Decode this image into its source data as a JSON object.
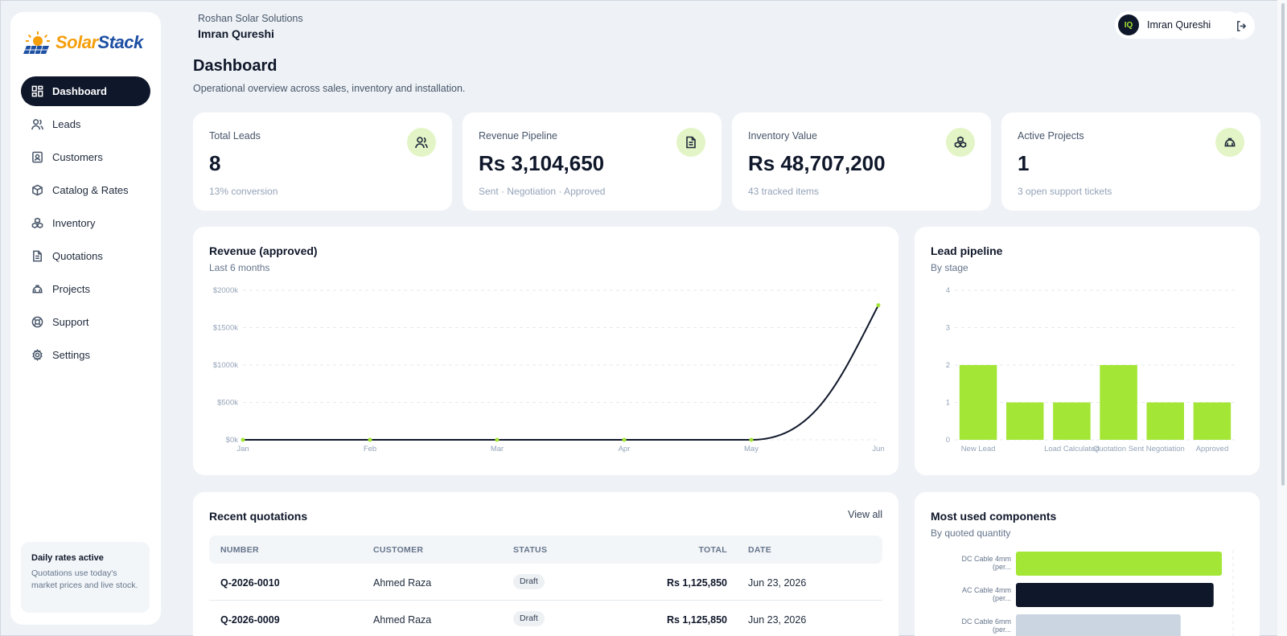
{
  "brand": {
    "solar": "Solar",
    "stack": "Stack"
  },
  "nav": [
    {
      "label": "Dashboard",
      "icon": "dashboard-icon",
      "active": true
    },
    {
      "label": "Leads",
      "icon": "users-icon"
    },
    {
      "label": "Customers",
      "icon": "contact-icon"
    },
    {
      "label": "Catalog & Rates",
      "icon": "box-icon"
    },
    {
      "label": "Inventory",
      "icon": "boxes-icon"
    },
    {
      "label": "Quotations",
      "icon": "document-icon"
    },
    {
      "label": "Projects",
      "icon": "hardhat-icon"
    },
    {
      "label": "Support",
      "icon": "lifebuoy-icon"
    },
    {
      "label": "Settings",
      "icon": "gear-icon"
    }
  ],
  "rates": {
    "title": "Daily rates active",
    "text": "Quotations use today's market prices and live stock."
  },
  "header": {
    "company": "Roshan Solar Solutions",
    "user": "Imran Qureshi",
    "initials": "IQ",
    "pill_name": "Imran Qureshi"
  },
  "page": {
    "title": "Dashboard",
    "subtitle": "Operational overview across sales, inventory and installation."
  },
  "stats": [
    {
      "label": "Total Leads",
      "value": "8",
      "sub": "13% conversion",
      "icon": "users-icon"
    },
    {
      "label": "Revenue Pipeline",
      "value": "Rs 3,104,650",
      "sub": "Sent · Negotiation · Approved",
      "icon": "document-icon"
    },
    {
      "label": "Inventory Value",
      "value": "Rs 48,707,200",
      "sub": "43 tracked items",
      "icon": "boxes-icon"
    },
    {
      "label": "Active Projects",
      "value": "1",
      "sub": "3 open support tickets",
      "icon": "hardhat-icon"
    }
  ],
  "revenue": {
    "title": "Revenue (approved)",
    "subtitle": "Last 6 months"
  },
  "pipeline": {
    "title": "Lead pipeline",
    "subtitle": "By stage"
  },
  "components": {
    "title": "Most used components",
    "subtitle": "By quoted quantity"
  },
  "quotations": {
    "title": "Recent quotations",
    "view_all": "View all",
    "columns": [
      "NUMBER",
      "CUSTOMER",
      "STATUS",
      "TOTAL",
      "DATE"
    ],
    "rows": [
      {
        "number": "Q-2026-0010",
        "customer": "Ahmed Raza",
        "status": "Draft",
        "total": "Rs 1,125,850",
        "date": "Jun 23, 2026"
      },
      {
        "number": "Q-2026-0009",
        "customer": "Ahmed Raza",
        "status": "Draft",
        "total": "Rs 1,125,850",
        "date": "Jun 23, 2026"
      }
    ]
  },
  "colors": {
    "accent": "#a3e635",
    "dark": "#0f172a",
    "muted": "#cbd5e1"
  },
  "chart_data": [
    {
      "type": "line",
      "title": "Revenue (approved)",
      "subtitle": "Last 6 months",
      "x": [
        "Jan",
        "Feb",
        "Mar",
        "Apr",
        "May",
        "Jun"
      ],
      "y_ticks": [
        "$0k",
        "$500k",
        "$1000k",
        "$1500k",
        "$2000k"
      ],
      "ylim": [
        0,
        2000
      ],
      "series": [
        {
          "values": [
            0,
            0,
            0,
            0,
            0,
            1800
          ]
        }
      ],
      "grid": true
    },
    {
      "type": "bar",
      "title": "Lead pipeline",
      "subtitle": "By stage",
      "categories": [
        "New Lead",
        "",
        "Load Calculated",
        "Quotation Sent",
        "Negotiation",
        "Approved"
      ],
      "values": [
        2,
        1,
        1,
        2,
        1,
        1
      ],
      "y_ticks": [
        "0",
        "1",
        "2",
        "3",
        "4"
      ],
      "ylim": [
        0,
        4
      ],
      "grid": true
    },
    {
      "type": "bar",
      "orientation": "horizontal",
      "title": "Most used components",
      "subtitle": "By quoted quantity",
      "categories": [
        {
          "line1": "DC Cable 4mm",
          "line2": "(per..."
        },
        {
          "line1": "AC Cable 4mm",
          "line2": "(per..."
        },
        {
          "line1": "DC Cable 6mm",
          "line2": "(per..."
        }
      ],
      "values": [
        100,
        96,
        80
      ],
      "bar_colors": [
        "#a3e635",
        "#0f172a",
        "#cbd5e1"
      ]
    }
  ]
}
